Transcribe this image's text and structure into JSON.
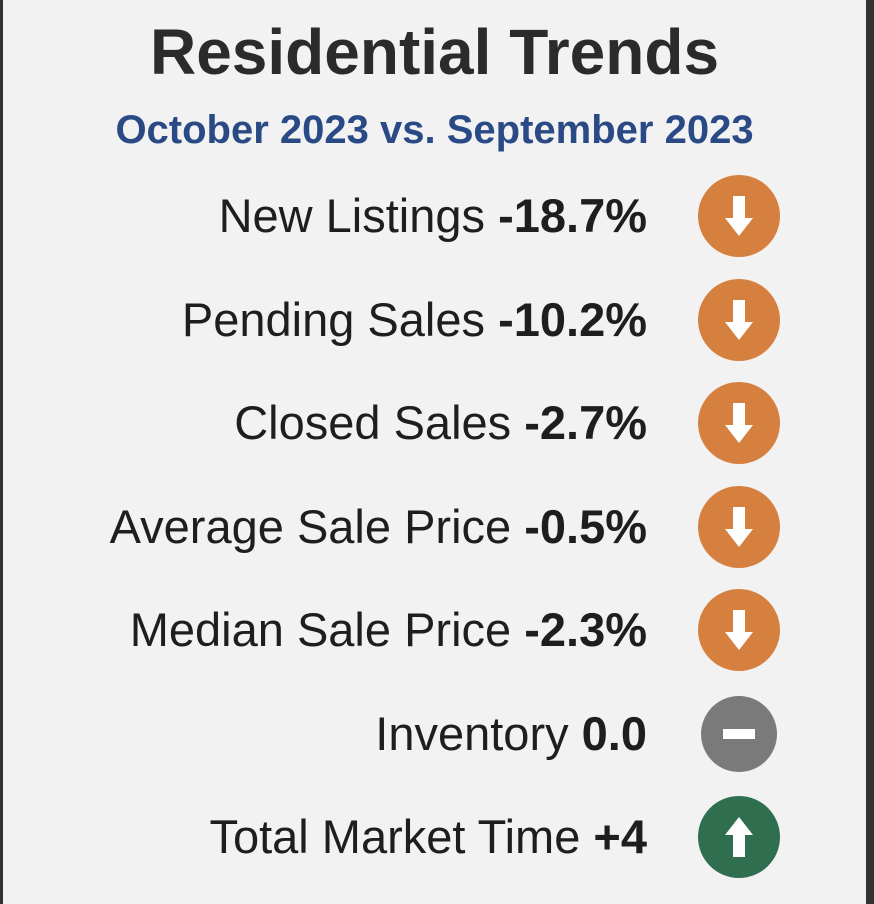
{
  "header": {
    "title": "Residential Trends",
    "subtitle": "October 2023 vs. September 2023"
  },
  "rows": [
    {
      "label": "New Listings",
      "value": "-18.7%",
      "trend": "down"
    },
    {
      "label": "Pending Sales",
      "value": "-10.2%",
      "trend": "down"
    },
    {
      "label": "Closed Sales",
      "value": "-2.7%",
      "trend": "down"
    },
    {
      "label": "Average Sale Price",
      "value": "-0.5%",
      "trend": "down"
    },
    {
      "label": "Median Sale Price",
      "value": "-2.3%",
      "trend": "down"
    },
    {
      "label": "Inventory",
      "value": "0.0",
      "trend": "flat"
    },
    {
      "label": "Total Market Time",
      "value": "+4",
      "trend": "up"
    }
  ],
  "trend_colors": {
    "down": "#d6803f",
    "flat": "#7a7a7a",
    "up": "#2f6e4f"
  }
}
